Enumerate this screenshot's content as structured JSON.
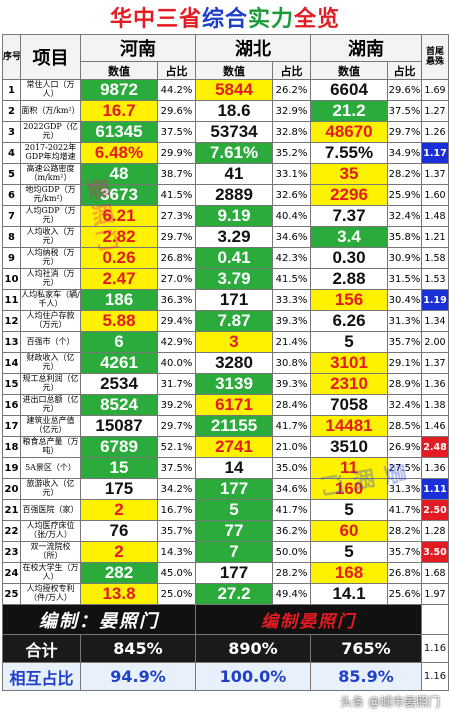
{
  "title": {
    "part1": "华中三省",
    "part2": "综合",
    "part3": "实力",
    "part4": "全览"
  },
  "header": {
    "no": "序号",
    "item": "项目",
    "province1": "河南",
    "province2": "湖北",
    "province3": "湖南",
    "ratio": "首尾悬殊",
    "value": "数值",
    "share": "占比"
  },
  "rows": [
    {
      "no": "1",
      "item": "常住人口（万人）",
      "v1": "9872",
      "p1": "44.2%",
      "v2": "5844",
      "p2": "26.2%",
      "v3": "6604",
      "p3": "29.6%",
      "r": "1.69",
      "c": [
        "g",
        "y",
        "w"
      ],
      "hl": ""
    },
    {
      "no": "2",
      "item": "面积（万/km²）",
      "v1": "16.7",
      "p1": "29.6%",
      "v2": "18.6",
      "p2": "32.9%",
      "v3": "21.2",
      "p3": "37.5%",
      "r": "1.27",
      "c": [
        "y",
        "w",
        "g"
      ],
      "hl": ""
    },
    {
      "no": "3",
      "item": "2022GDP（亿元）",
      "v1": "61345",
      "p1": "37.5%",
      "v2": "53734",
      "p2": "32.8%",
      "v3": "48670",
      "p3": "29.7%",
      "r": "1.26",
      "c": [
        "g",
        "w",
        "y"
      ],
      "hl": ""
    },
    {
      "no": "4",
      "item": "2017-2022年GDP年均增速",
      "v1": "6.48%",
      "p1": "29.9%",
      "v2": "7.61%",
      "p2": "35.2%",
      "v3": "7.55%",
      "p3": "34.9%",
      "r": "1.17",
      "c": [
        "y",
        "g",
        "w"
      ],
      "hl": "blue"
    },
    {
      "no": "5",
      "item": "高速公路密度（m/km²）",
      "v1": "48",
      "p1": "38.7%",
      "v2": "41",
      "p2": "33.1%",
      "v3": "35",
      "p3": "28.2%",
      "r": "1.37",
      "c": [
        "g",
        "w",
        "y"
      ],
      "hl": ""
    },
    {
      "no": "6",
      "item": "地均GDP（万元/km²）",
      "v1": "3673",
      "p1": "41.5%",
      "v2": "2889",
      "p2": "32.6%",
      "v3": "2296",
      "p3": "25.9%",
      "r": "1.60",
      "c": [
        "g",
        "w",
        "y"
      ],
      "hl": ""
    },
    {
      "no": "7",
      "item": "人均GDP（万元）",
      "v1": "6.21",
      "p1": "27.3%",
      "v2": "9.19",
      "p2": "40.4%",
      "v3": "7.37",
      "p3": "32.4%",
      "r": "1.48",
      "c": [
        "y",
        "g",
        "w"
      ],
      "hl": ""
    },
    {
      "no": "8",
      "item": "人均收入（万元）",
      "v1": "2.82",
      "p1": "29.7%",
      "v2": "3.29",
      "p2": "34.6%",
      "v3": "3.4",
      "p3": "35.8%",
      "r": "1.21",
      "c": [
        "y",
        "w",
        "g"
      ],
      "hl": ""
    },
    {
      "no": "9",
      "item": "人均纳税（万元）",
      "v1": "0.26",
      "p1": "26.8%",
      "v2": "0.41",
      "p2": "42.3%",
      "v3": "0.30",
      "p3": "30.9%",
      "r": "1.58",
      "c": [
        "y",
        "g",
        "w"
      ],
      "hl": ""
    },
    {
      "no": "10",
      "item": "人均社消（万元）",
      "v1": "2.47",
      "p1": "27.0%",
      "v2": "3.79",
      "p2": "41.5%",
      "v3": "2.88",
      "p3": "31.5%",
      "r": "1.53",
      "c": [
        "y",
        "g",
        "w"
      ],
      "hl": ""
    },
    {
      "no": "11",
      "item": "人均私家车（辆/千人）",
      "v1": "186",
      "p1": "36.3%",
      "v2": "171",
      "p2": "33.3%",
      "v3": "156",
      "p3": "30.4%",
      "r": "1.19",
      "c": [
        "g",
        "w",
        "y"
      ],
      "hl": "blue"
    },
    {
      "no": "12",
      "item": "人均住户存款（万元）",
      "v1": "5.88",
      "p1": "29.4%",
      "v2": "7.87",
      "p2": "39.3%",
      "v3": "6.26",
      "p3": "31.3%",
      "r": "1.34",
      "c": [
        "y",
        "g",
        "w"
      ],
      "hl": ""
    },
    {
      "no": "13",
      "item": "百强市（个）",
      "v1": "6",
      "p1": "42.9%",
      "v2": "3",
      "p2": "21.4%",
      "v3": "5",
      "p3": "35.7%",
      "r": "2.00",
      "c": [
        "g",
        "y",
        "w"
      ],
      "hl": ""
    },
    {
      "no": "14",
      "item": "财政收入（亿元）",
      "v1": "4261",
      "p1": "40.0%",
      "v2": "3280",
      "p2": "30.8%",
      "v3": "3101",
      "p3": "29.1%",
      "r": "1.37",
      "c": [
        "g",
        "w",
        "y"
      ],
      "hl": ""
    },
    {
      "no": "15",
      "item": "规工总利润（亿元）",
      "v1": "2534",
      "p1": "31.7%",
      "v2": "3139",
      "p2": "39.3%",
      "v3": "2310",
      "p3": "28.9%",
      "r": "1.36",
      "c": [
        "w",
        "g",
        "y"
      ],
      "hl": ""
    },
    {
      "no": "16",
      "item": "进出口总额（亿元）",
      "v1": "8524",
      "p1": "39.2%",
      "v2": "6171",
      "p2": "28.4%",
      "v3": "7058",
      "p3": "32.4%",
      "r": "1.38",
      "c": [
        "g",
        "y",
        "w"
      ],
      "hl": ""
    },
    {
      "no": "17",
      "item": "建筑业总产值（亿元）",
      "v1": "15087",
      "p1": "29.7%",
      "v2": "21155",
      "p2": "41.7%",
      "v3": "14481",
      "p3": "28.5%",
      "r": "1.46",
      "c": [
        "w",
        "g",
        "y"
      ],
      "hl": ""
    },
    {
      "no": "18",
      "item": "粮食总产量（万吨）",
      "v1": "6789",
      "p1": "52.1%",
      "v2": "2741",
      "p2": "21.0%",
      "v3": "3510",
      "p3": "26.9%",
      "r": "2.48",
      "c": [
        "g",
        "y",
        "w"
      ],
      "hl": "red"
    },
    {
      "no": "19",
      "item": "5A景区（个）",
      "v1": "15",
      "p1": "37.5%",
      "v2": "14",
      "p2": "35.0%",
      "v3": "11",
      "p3": "27.5%",
      "r": "1.36",
      "c": [
        "g",
        "w",
        "y"
      ],
      "hl": ""
    },
    {
      "no": "20",
      "item": "旅游收入（亿元）",
      "v1": "175",
      "p1": "34.2%",
      "v2": "177",
      "p2": "34.6%",
      "v3": "160",
      "p3": "31.3%",
      "r": "1.11",
      "c": [
        "w",
        "g",
        "y"
      ],
      "hl": "blue"
    },
    {
      "no": "21",
      "item": "百强医院（家）",
      "v1": "2",
      "p1": "16.7%",
      "v2": "5",
      "p2": "41.7%",
      "v3": "5",
      "p3": "41.7%",
      "r": "2.50",
      "c": [
        "y",
        "g",
        "w"
      ],
      "hl": "red"
    },
    {
      "no": "22",
      "item": "人均医疗床位（张/万人）",
      "v1": "76",
      "p1": "35.7%",
      "v2": "77",
      "p2": "36.2%",
      "v3": "60",
      "p3": "28.2%",
      "r": "1.28",
      "c": [
        "w",
        "g",
        "y"
      ],
      "hl": ""
    },
    {
      "no": "23",
      "item": "双一流院校（所）",
      "v1": "2",
      "p1": "14.3%",
      "v2": "7",
      "p2": "50.0%",
      "v3": "5",
      "p3": "35.7%",
      "r": "3.50",
      "c": [
        "y",
        "g",
        "w"
      ],
      "hl": "red"
    },
    {
      "no": "24",
      "item": "在校大学生（万人）",
      "v1": "282",
      "p1": "45.0%",
      "v2": "177",
      "p2": "28.2%",
      "v3": "168",
      "p3": "26.8%",
      "r": "1.68",
      "c": [
        "g",
        "w",
        "y"
      ],
      "hl": ""
    },
    {
      "no": "25",
      "item": "人均授权专利（件/万人）",
      "v1": "13.8",
      "p1": "25.0%",
      "v2": "27.2",
      "p2": "49.4%",
      "v3": "14.1",
      "p3": "25.6%",
      "r": "1.97",
      "c": [
        "y",
        "g",
        "w"
      ],
      "hl": ""
    }
  ],
  "signature": {
    "left": "编制：晏照门",
    "right": "编制晏照门"
  },
  "totals": {
    "label": "合计",
    "v1": "845%",
    "v2": "890%",
    "v3": "765%",
    "r": "1.16"
  },
  "mutual": {
    "label": "相互占比",
    "v1": "94.9%",
    "v2": "100.0%",
    "v3": "85.9%",
    "r": "1.16"
  },
  "watermarks": {
    "left": "晏照门",
    "right": "晏照门"
  },
  "credit": "头条 @城市晏照门",
  "colors": {
    "green": "#2aab3c",
    "yellow": "#fff200",
    "red": "#e31b23",
    "blue": "#1e3fc8"
  }
}
